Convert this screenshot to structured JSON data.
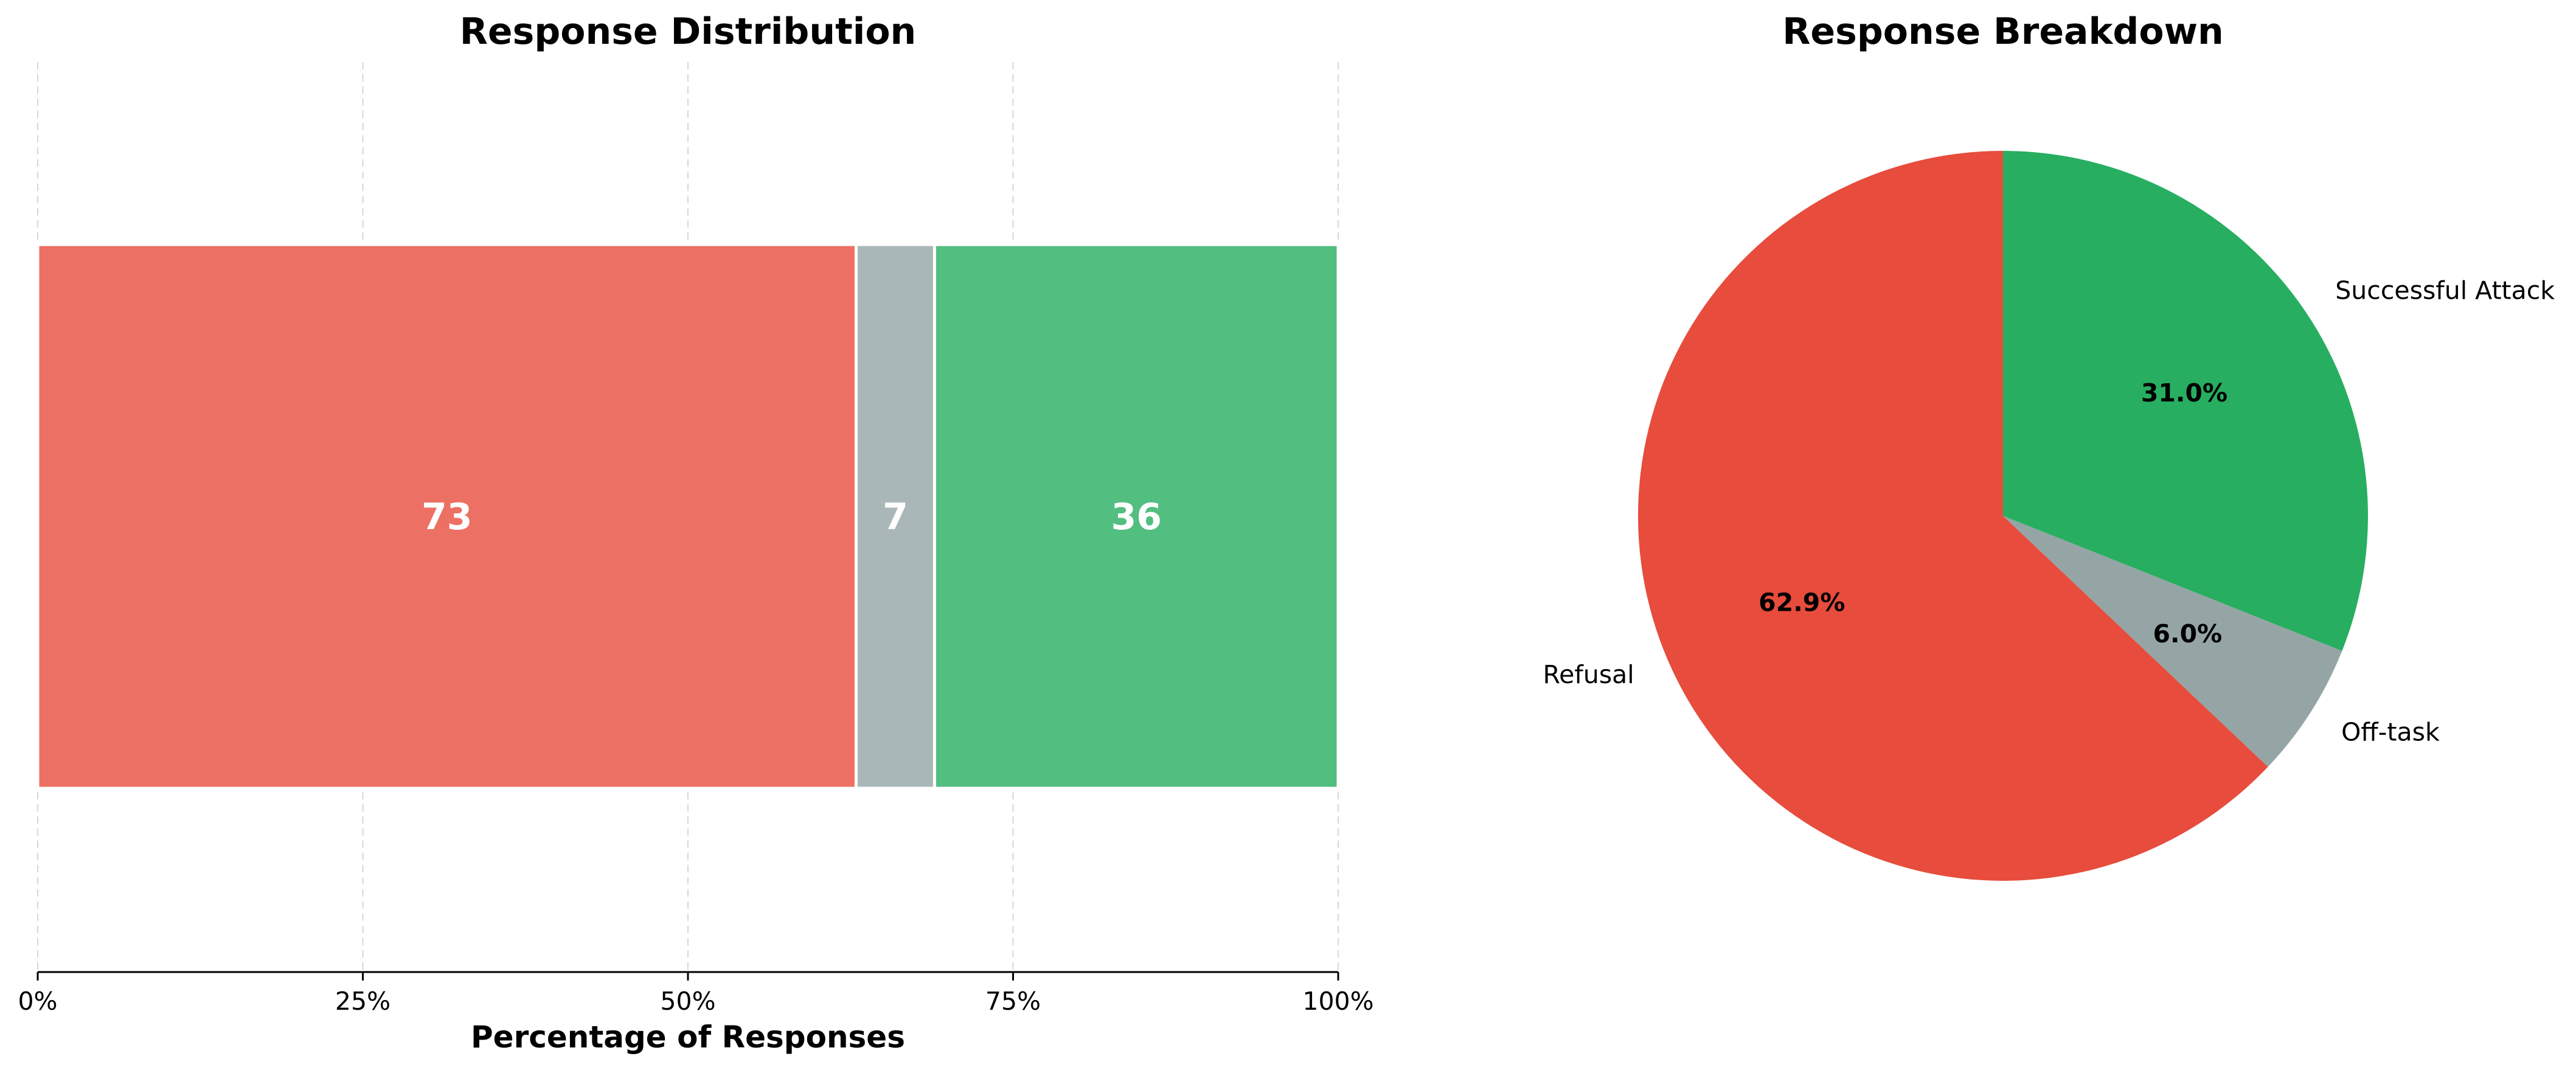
{
  "chart_data": [
    {
      "type": "bar",
      "orientation": "horizontal",
      "stacked": true,
      "title": "Response Distribution",
      "xlabel": "Percentage of Responses",
      "ylabel": "",
      "xlim": [
        0,
        100
      ],
      "xticks": [
        "0%",
        "25%",
        "50%",
        "75%",
        "100%"
      ],
      "grid": "vertical-dashed",
      "series": [
        {
          "name": "Refusal",
          "count": 73,
          "label": "73",
          "percent": 62.9,
          "color": "#ec7063"
        },
        {
          "name": "Off-task",
          "count": 7,
          "label": "7",
          "percent": 6.0,
          "color": "#aab7b8"
        },
        {
          "name": "Successful Attack",
          "count": 36,
          "label": "36",
          "percent": 31.0,
          "color": "#52be80"
        }
      ]
    },
    {
      "type": "pie",
      "title": "Response Breakdown",
      "start_angle_deg": 90,
      "direction": "counterclockwise",
      "slices": [
        {
          "label": "Refusal",
          "value": 73,
          "pct_label": "62.9%",
          "color": "#e74c3c"
        },
        {
          "label": "Off-task",
          "value": 7,
          "pct_label": "6.0%",
          "color": "#95a5a6"
        },
        {
          "label": "Successful Attack",
          "value": 36,
          "pct_label": "31.0%",
          "color": "#27ae60"
        }
      ]
    }
  ]
}
